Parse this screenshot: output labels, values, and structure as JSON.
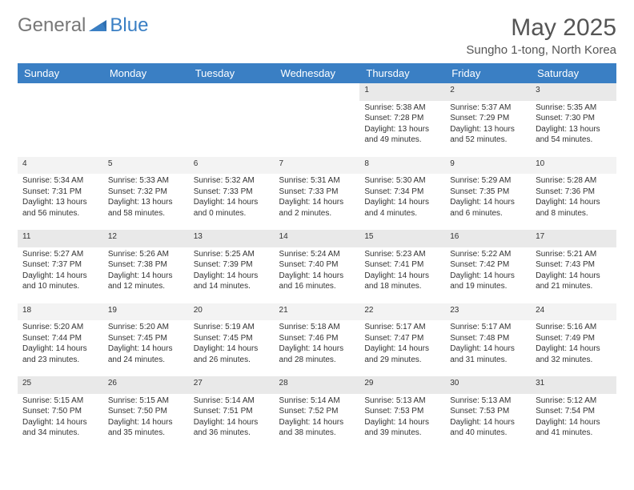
{
  "logo": {
    "text1": "General",
    "text2": "Blue"
  },
  "title": "May 2025",
  "location": "Sungho 1-tong, North Korea",
  "colors": {
    "header_bg": "#3a7fc4",
    "header_fg": "#ffffff",
    "daynum_bg": "#e9e9e9",
    "page_bg": "#ffffff",
    "text": "#333333"
  },
  "dayHeaders": [
    "Sunday",
    "Monday",
    "Tuesday",
    "Wednesday",
    "Thursday",
    "Friday",
    "Saturday"
  ],
  "weeks": [
    [
      null,
      null,
      null,
      null,
      {
        "n": "1",
        "sr": "5:38 AM",
        "ss": "7:28 PM",
        "dl": "13 hours and 49 minutes."
      },
      {
        "n": "2",
        "sr": "5:37 AM",
        "ss": "7:29 PM",
        "dl": "13 hours and 52 minutes."
      },
      {
        "n": "3",
        "sr": "5:35 AM",
        "ss": "7:30 PM",
        "dl": "13 hours and 54 minutes."
      }
    ],
    [
      {
        "n": "4",
        "sr": "5:34 AM",
        "ss": "7:31 PM",
        "dl": "13 hours and 56 minutes."
      },
      {
        "n": "5",
        "sr": "5:33 AM",
        "ss": "7:32 PM",
        "dl": "13 hours and 58 minutes."
      },
      {
        "n": "6",
        "sr": "5:32 AM",
        "ss": "7:33 PM",
        "dl": "14 hours and 0 minutes."
      },
      {
        "n": "7",
        "sr": "5:31 AM",
        "ss": "7:33 PM",
        "dl": "14 hours and 2 minutes."
      },
      {
        "n": "8",
        "sr": "5:30 AM",
        "ss": "7:34 PM",
        "dl": "14 hours and 4 minutes."
      },
      {
        "n": "9",
        "sr": "5:29 AM",
        "ss": "7:35 PM",
        "dl": "14 hours and 6 minutes."
      },
      {
        "n": "10",
        "sr": "5:28 AM",
        "ss": "7:36 PM",
        "dl": "14 hours and 8 minutes."
      }
    ],
    [
      {
        "n": "11",
        "sr": "5:27 AM",
        "ss": "7:37 PM",
        "dl": "14 hours and 10 minutes."
      },
      {
        "n": "12",
        "sr": "5:26 AM",
        "ss": "7:38 PM",
        "dl": "14 hours and 12 minutes."
      },
      {
        "n": "13",
        "sr": "5:25 AM",
        "ss": "7:39 PM",
        "dl": "14 hours and 14 minutes."
      },
      {
        "n": "14",
        "sr": "5:24 AM",
        "ss": "7:40 PM",
        "dl": "14 hours and 16 minutes."
      },
      {
        "n": "15",
        "sr": "5:23 AM",
        "ss": "7:41 PM",
        "dl": "14 hours and 18 minutes."
      },
      {
        "n": "16",
        "sr": "5:22 AM",
        "ss": "7:42 PM",
        "dl": "14 hours and 19 minutes."
      },
      {
        "n": "17",
        "sr": "5:21 AM",
        "ss": "7:43 PM",
        "dl": "14 hours and 21 minutes."
      }
    ],
    [
      {
        "n": "18",
        "sr": "5:20 AM",
        "ss": "7:44 PM",
        "dl": "14 hours and 23 minutes."
      },
      {
        "n": "19",
        "sr": "5:20 AM",
        "ss": "7:45 PM",
        "dl": "14 hours and 24 minutes."
      },
      {
        "n": "20",
        "sr": "5:19 AM",
        "ss": "7:45 PM",
        "dl": "14 hours and 26 minutes."
      },
      {
        "n": "21",
        "sr": "5:18 AM",
        "ss": "7:46 PM",
        "dl": "14 hours and 28 minutes."
      },
      {
        "n": "22",
        "sr": "5:17 AM",
        "ss": "7:47 PM",
        "dl": "14 hours and 29 minutes."
      },
      {
        "n": "23",
        "sr": "5:17 AM",
        "ss": "7:48 PM",
        "dl": "14 hours and 31 minutes."
      },
      {
        "n": "24",
        "sr": "5:16 AM",
        "ss": "7:49 PM",
        "dl": "14 hours and 32 minutes."
      }
    ],
    [
      {
        "n": "25",
        "sr": "5:15 AM",
        "ss": "7:50 PM",
        "dl": "14 hours and 34 minutes."
      },
      {
        "n": "26",
        "sr": "5:15 AM",
        "ss": "7:50 PM",
        "dl": "14 hours and 35 minutes."
      },
      {
        "n": "27",
        "sr": "5:14 AM",
        "ss": "7:51 PM",
        "dl": "14 hours and 36 minutes."
      },
      {
        "n": "28",
        "sr": "5:14 AM",
        "ss": "7:52 PM",
        "dl": "14 hours and 38 minutes."
      },
      {
        "n": "29",
        "sr": "5:13 AM",
        "ss": "7:53 PM",
        "dl": "14 hours and 39 minutes."
      },
      {
        "n": "30",
        "sr": "5:13 AM",
        "ss": "7:53 PM",
        "dl": "14 hours and 40 minutes."
      },
      {
        "n": "31",
        "sr": "5:12 AM",
        "ss": "7:54 PM",
        "dl": "14 hours and 41 minutes."
      }
    ]
  ],
  "labels": {
    "sunrise": "Sunrise: ",
    "sunset": "Sunset: ",
    "daylight": "Daylight: "
  }
}
